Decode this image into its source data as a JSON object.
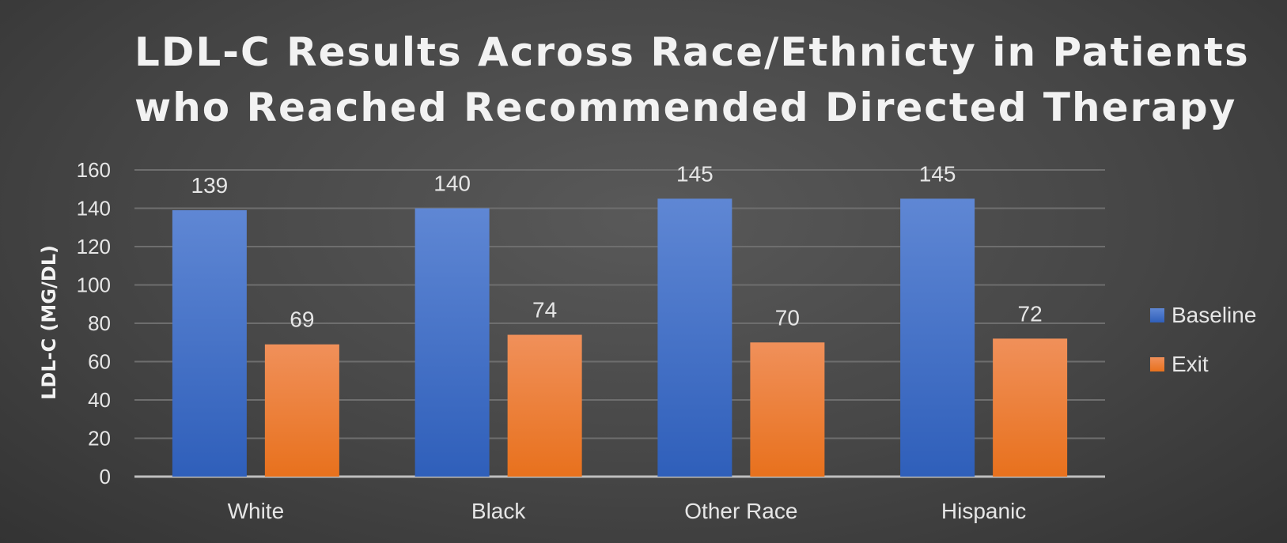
{
  "chart_data": {
    "type": "bar",
    "title_lines": [
      "LDL-C Results Across Race/Ethnicty in Patients",
      "who Reached Recommended Directed Therapy"
    ],
    "ylabel": "LDL-C (MG/DL)",
    "xlabel": "",
    "categories": [
      "White",
      "Black",
      "Other Race",
      "Hispanic"
    ],
    "series": [
      {
        "name": "Baseline",
        "values": [
          139,
          140,
          145,
          145
        ],
        "color": "#4472c4"
      },
      {
        "name": "Exit",
        "values": [
          69,
          74,
          70,
          72
        ],
        "color": "#ed7d31"
      }
    ],
    "ylim": [
      0,
      160
    ],
    "yticks": [
      0,
      20,
      40,
      60,
      80,
      100,
      120,
      140,
      160
    ],
    "grid": true,
    "legend_position": "right",
    "data_labels": true
  }
}
